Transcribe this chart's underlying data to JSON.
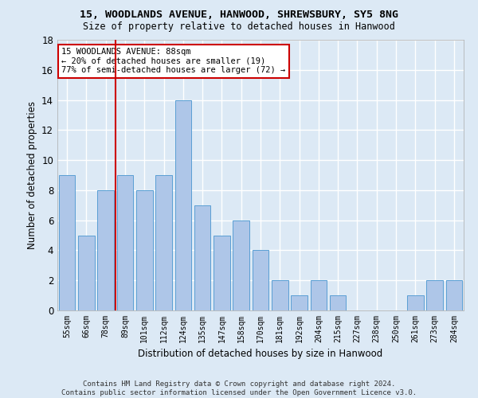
{
  "title1": "15, WOODLANDS AVENUE, HANWOOD, SHREWSBURY, SY5 8NG",
  "title2": "Size of property relative to detached houses in Hanwood",
  "xlabel": "Distribution of detached houses by size in Hanwood",
  "ylabel": "Number of detached properties",
  "categories": [
    "55sqm",
    "66sqm",
    "78sqm",
    "89sqm",
    "101sqm",
    "112sqm",
    "124sqm",
    "135sqm",
    "147sqm",
    "158sqm",
    "170sqm",
    "181sqm",
    "192sqm",
    "204sqm",
    "215sqm",
    "227sqm",
    "238sqm",
    "250sqm",
    "261sqm",
    "273sqm",
    "284sqm"
  ],
  "values": [
    9,
    5,
    8,
    9,
    8,
    9,
    14,
    7,
    5,
    6,
    4,
    2,
    1,
    2,
    1,
    0,
    0,
    0,
    1,
    2,
    2
  ],
  "bar_color": "#aec6e8",
  "bar_edge_color": "#5a9fd4",
  "vline_x_index": 3,
  "vline_color": "#cc0000",
  "annotation_text": "15 WOODLANDS AVENUE: 88sqm\n← 20% of detached houses are smaller (19)\n77% of semi-detached houses are larger (72) →",
  "annotation_box_color": "#ffffff",
  "annotation_edge_color": "#cc0000",
  "footer": "Contains HM Land Registry data © Crown copyright and database right 2024.\nContains public sector information licensed under the Open Government Licence v3.0.",
  "ylim": [
    0,
    18
  ],
  "yticks": [
    0,
    2,
    4,
    6,
    8,
    10,
    12,
    14,
    16,
    18
  ],
  "bg_color": "#dce9f5",
  "plot_bg_color": "#dce9f5",
  "grid_color": "#ffffff"
}
